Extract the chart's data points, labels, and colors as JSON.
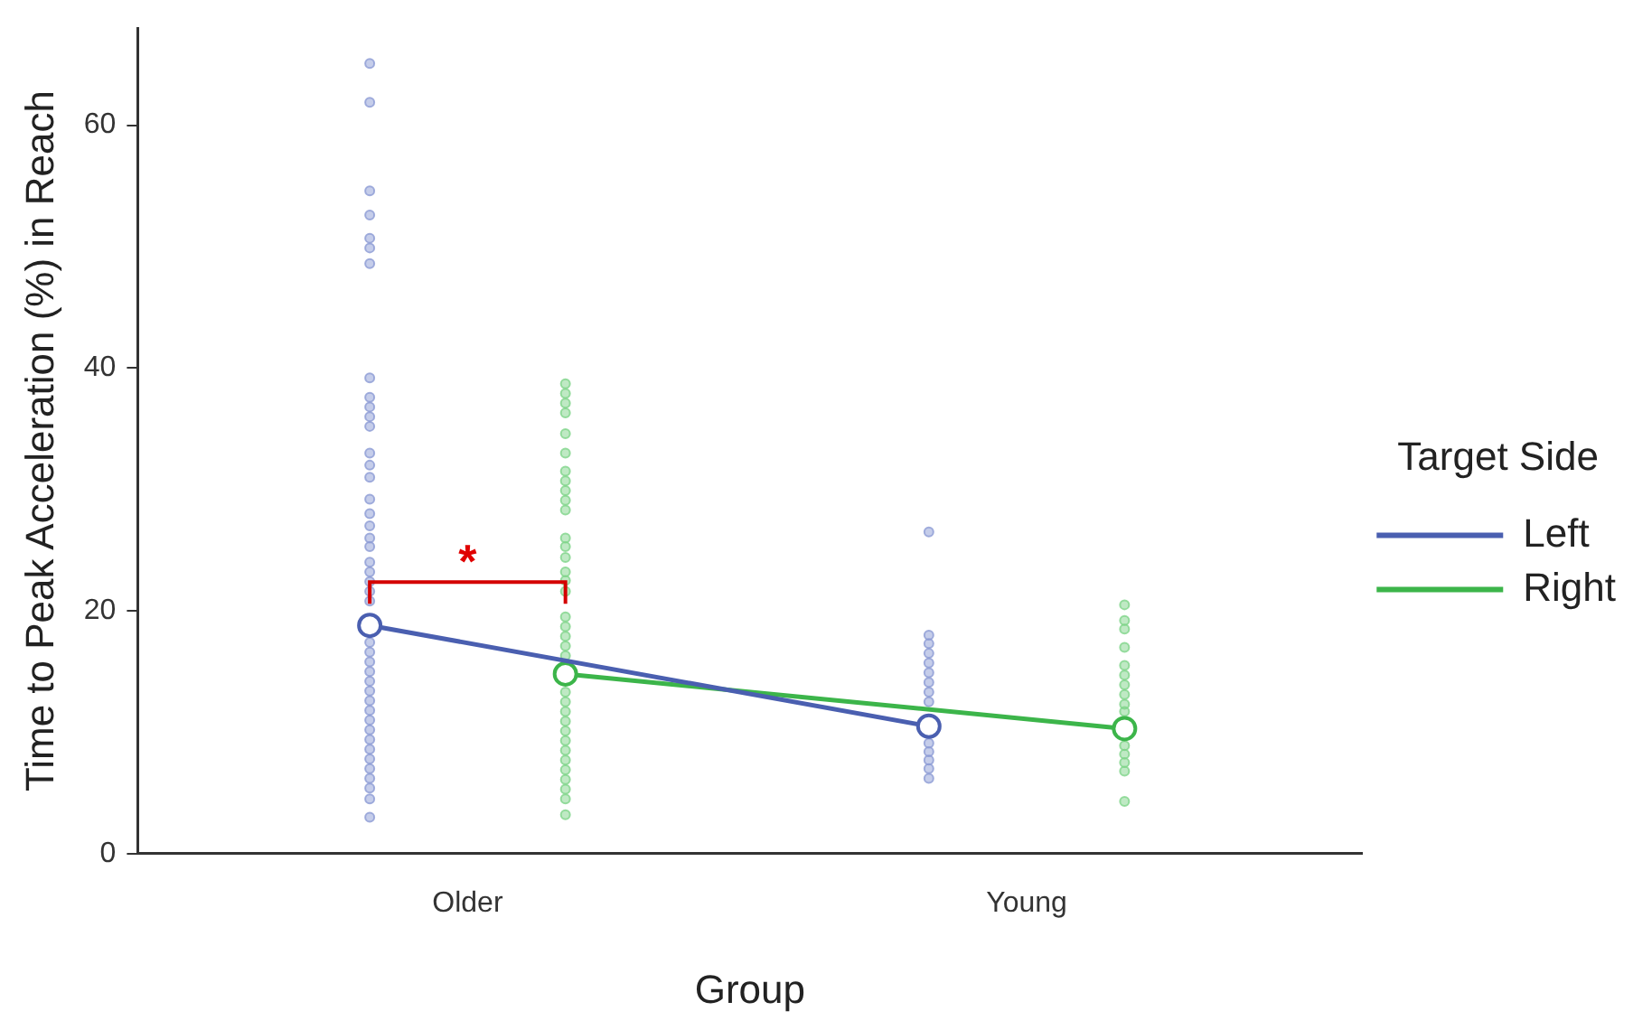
{
  "chart_data": {
    "type": "scatter",
    "xlabel": "Group",
    "ylabel": "Time to Peak Acceleration (%) in Reach",
    "legend_title": "Target Side",
    "legend": "right",
    "grid": false,
    "marker": "circle",
    "categories": [
      "Older",
      "Young"
    ],
    "ylim": [
      0,
      68
    ],
    "yticks": [
      0,
      20,
      40,
      60
    ],
    "annotations": [
      "*"
    ],
    "series": [
      {
        "color": "#8c9bd5",
        "x": [
          "Older",
          "Older",
          "Older",
          "Older",
          "Older",
          "Older",
          "Older",
          "Older",
          "Older",
          "Older",
          "Older",
          "Older",
          "Older",
          "Older",
          "Older",
          "Older",
          "Older",
          "Older",
          "Older",
          "Older",
          "Older",
          "Older",
          "Older",
          "Older",
          "Older",
          "Older",
          "Older",
          "Older",
          "Older",
          "Older",
          "Older",
          "Older",
          "Older",
          "Older",
          "Older",
          "Older",
          "Older",
          "Older",
          "Older",
          "Older",
          "Older",
          "Older",
          "Older",
          "Young",
          "Young",
          "Young",
          "Young",
          "Young",
          "Young",
          "Young",
          "Young",
          "Young",
          "Young",
          "Young",
          "Young",
          "Young",
          "Young"
        ],
        "values": [
          65.1,
          61.9,
          54.6,
          52.6,
          50.7,
          49.9,
          48.6,
          39.2,
          37.6,
          36.8,
          36.0,
          35.2,
          33.0,
          32.0,
          31.0,
          29.2,
          28.0,
          27.0,
          26.0,
          25.3,
          24.0,
          23.2,
          22.4,
          21.6,
          20.8,
          17.4,
          16.6,
          15.8,
          15.0,
          14.2,
          13.4,
          12.6,
          11.8,
          11.0,
          10.2,
          9.4,
          8.6,
          7.8,
          7.0,
          6.2,
          5.4,
          4.5,
          3.0,
          26.5,
          18.0,
          17.3,
          16.5,
          15.7,
          14.9,
          14.1,
          13.3,
          12.5,
          9.1,
          8.4,
          7.7,
          7.0,
          6.2
        ]
      },
      {
        "color": "#7fd48a",
        "x": [
          "Older",
          "Older",
          "Older",
          "Older",
          "Older",
          "Older",
          "Older",
          "Older",
          "Older",
          "Older",
          "Older",
          "Older",
          "Older",
          "Older",
          "Older",
          "Older",
          "Older",
          "Older",
          "Older",
          "Older",
          "Older",
          "Older",
          "Older",
          "Older",
          "Older",
          "Older",
          "Older",
          "Older",
          "Older",
          "Older",
          "Older",
          "Older",
          "Older",
          "Older",
          "Older",
          "Young",
          "Young",
          "Young",
          "Young",
          "Young",
          "Young",
          "Young",
          "Young",
          "Young",
          "Young",
          "Young",
          "Young",
          "Young",
          "Young",
          "Young"
        ],
        "values": [
          38.7,
          37.9,
          37.1,
          36.3,
          34.6,
          33.0,
          31.5,
          30.7,
          29.9,
          29.1,
          28.3,
          26.0,
          25.3,
          24.4,
          23.2,
          22.5,
          21.6,
          19.5,
          18.7,
          17.9,
          17.1,
          16.3,
          13.3,
          12.5,
          11.7,
          10.9,
          10.1,
          9.3,
          8.5,
          7.7,
          6.9,
          6.1,
          5.3,
          4.5,
          3.2,
          20.5,
          19.2,
          18.5,
          17.0,
          15.5,
          14.7,
          13.9,
          13.1,
          12.3,
          11.7,
          8.9,
          8.2,
          7.5,
          6.8,
          4.3
        ]
      },
      {
        "type": "line",
        "name": "Left",
        "color": "#4a5fb0",
        "values": [
          18.8,
          10.5
        ]
      },
      {
        "type": "line",
        "name": "Right",
        "color": "#3cb54a",
        "values": [
          14.8,
          10.3
        ]
      }
    ]
  }
}
